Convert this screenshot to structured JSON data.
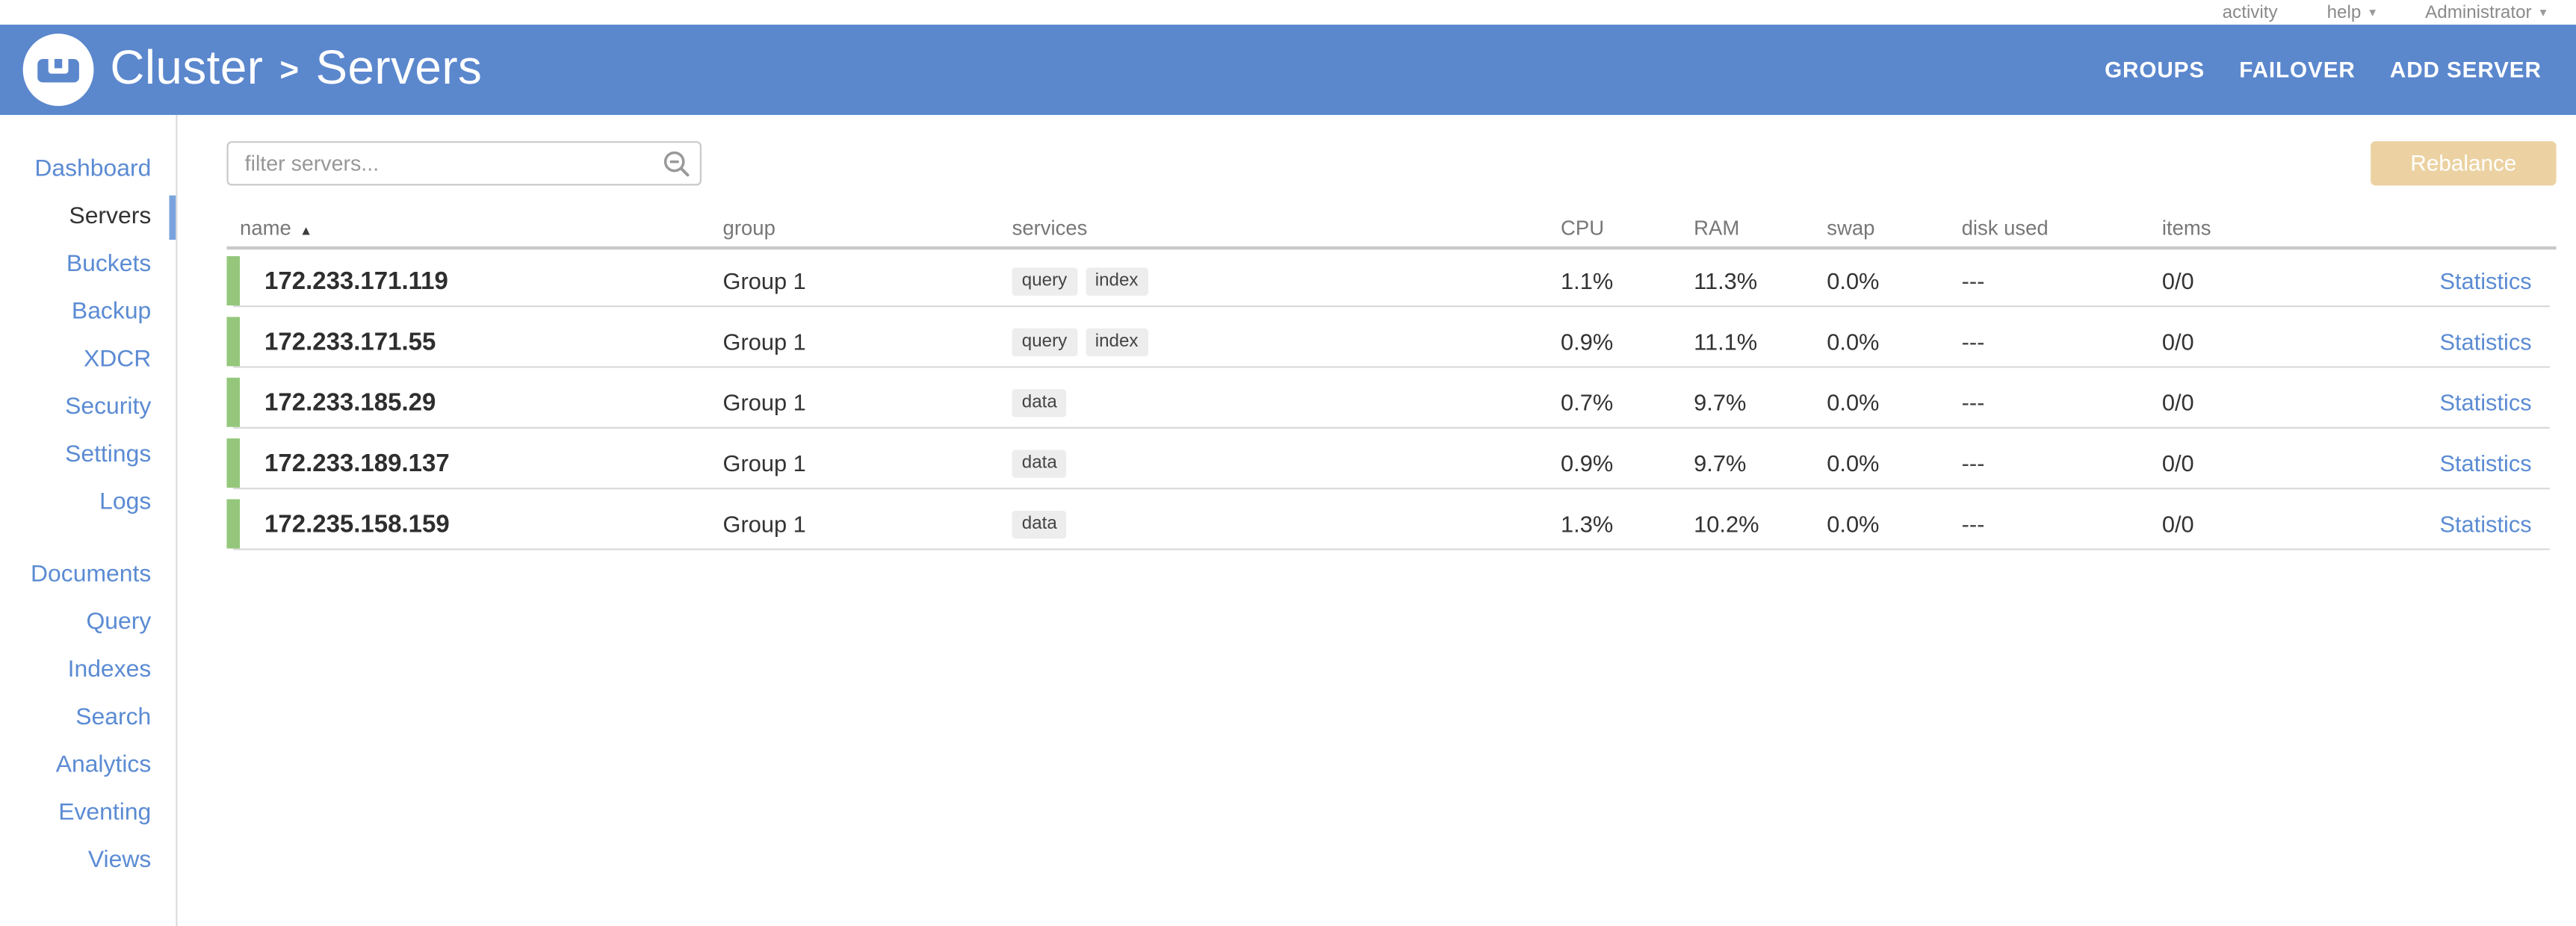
{
  "topbar": {
    "items": [
      {
        "label": "activity",
        "slug": "activity",
        "caret": false
      },
      {
        "label": "help",
        "slug": "help",
        "caret": true
      },
      {
        "label": "Administrator",
        "slug": "administrator",
        "caret": true
      }
    ]
  },
  "header": {
    "title_cluster": "Cluster",
    "title_separator": ">",
    "title_page": "Servers",
    "actions": [
      {
        "label": "GROUPS",
        "slug": "groups"
      },
      {
        "label": "FAILOVER",
        "slug": "failover"
      },
      {
        "label": "ADD SERVER",
        "slug": "add-server"
      }
    ]
  },
  "sidebar": {
    "primary": [
      {
        "label": "Dashboard",
        "slug": "dashboard",
        "active": false
      },
      {
        "label": "Servers",
        "slug": "servers",
        "active": true
      },
      {
        "label": "Buckets",
        "slug": "buckets",
        "active": false
      },
      {
        "label": "Backup",
        "slug": "backup",
        "active": false
      },
      {
        "label": "XDCR",
        "slug": "xdcr",
        "active": false
      },
      {
        "label": "Security",
        "slug": "security",
        "active": false
      },
      {
        "label": "Settings",
        "slug": "settings",
        "active": false
      },
      {
        "label": "Logs",
        "slug": "logs",
        "active": false
      }
    ],
    "secondary": [
      {
        "label": "Documents",
        "slug": "documents",
        "active": false
      },
      {
        "label": "Query",
        "slug": "query",
        "active": false
      },
      {
        "label": "Indexes",
        "slug": "indexes",
        "active": false
      },
      {
        "label": "Search",
        "slug": "search",
        "active": false
      },
      {
        "label": "Analytics",
        "slug": "analytics",
        "active": false
      },
      {
        "label": "Eventing",
        "slug": "eventing",
        "active": false
      },
      {
        "label": "Views",
        "slug": "views",
        "active": false
      }
    ]
  },
  "toolbar": {
    "filter_placeholder": "filter servers...",
    "rebalance_label": "Rebalance"
  },
  "table": {
    "columns": [
      {
        "label": "name",
        "sorted": true
      },
      {
        "label": "group",
        "sorted": false
      },
      {
        "label": "services",
        "sorted": false
      },
      {
        "label": "CPU",
        "sorted": false
      },
      {
        "label": "RAM",
        "sorted": false
      },
      {
        "label": "swap",
        "sorted": false
      },
      {
        "label": "disk used",
        "sorted": false
      },
      {
        "label": "items",
        "sorted": false
      }
    ],
    "statistics_label": "Statistics",
    "rows": [
      {
        "name": "172.233.171.119",
        "group": "Group 1",
        "services": [
          "query",
          "index"
        ],
        "cpu": "1.1%",
        "ram": "11.3%",
        "swap": "0.0%",
        "disk": "---",
        "items": "0/0"
      },
      {
        "name": "172.233.171.55",
        "group": "Group 1",
        "services": [
          "query",
          "index"
        ],
        "cpu": "0.9%",
        "ram": "11.1%",
        "swap": "0.0%",
        "disk": "---",
        "items": "0/0"
      },
      {
        "name": "172.233.185.29",
        "group": "Group 1",
        "services": [
          "data"
        ],
        "cpu": "0.7%",
        "ram": "9.7%",
        "swap": "0.0%",
        "disk": "---",
        "items": "0/0"
      },
      {
        "name": "172.233.189.137",
        "group": "Group 1",
        "services": [
          "data"
        ],
        "cpu": "0.9%",
        "ram": "9.7%",
        "swap": "0.0%",
        "disk": "---",
        "items": "0/0"
      },
      {
        "name": "172.235.158.159",
        "group": "Group 1",
        "services": [
          "data"
        ],
        "cpu": "1.3%",
        "ram": "10.2%",
        "swap": "0.0%",
        "disk": "---",
        "items": "0/0"
      }
    ]
  },
  "colors": {
    "header_blue": "#5b87cd",
    "link_blue": "#5b8bd3",
    "active_indicator_blue": "#7aa3de",
    "healthy_green": "#94c77b",
    "rebalance_disabled_tan": "#ecd2a2"
  }
}
